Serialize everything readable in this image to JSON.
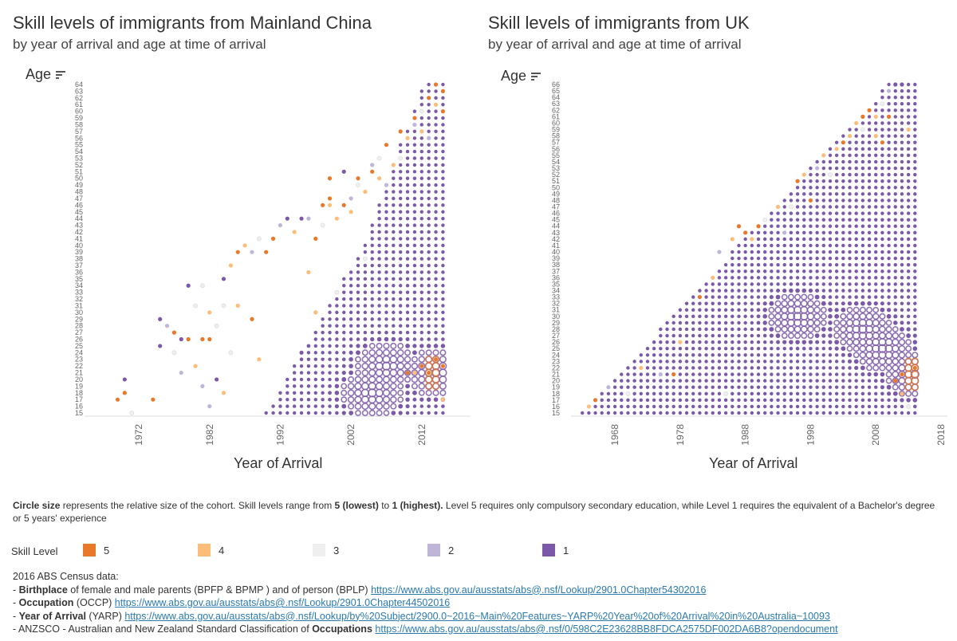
{
  "colors": {
    "level5": "#e8782a",
    "level4": "#fcbd7a",
    "level3": "#efefef",
    "level2": "#bfb5d9",
    "level1": "#7b58a8",
    "axis": "#666666",
    "baseline": "#dddddd"
  },
  "chart_data": [
    {
      "type": "scatter",
      "title": "Skill levels of immigrants from Mainland China",
      "subtitle": "by year of arrival and age at time of arrival",
      "xlabel": "Year of Arrival",
      "ylabel": "Age",
      "x_ticks": [
        1972,
        1982,
        1992,
        2002,
        2012
      ],
      "xlim": [
        1965,
        2018
      ],
      "ylim": [
        15,
        64
      ],
      "y_ticks": [
        15,
        16,
        17,
        18,
        19,
        20,
        21,
        22,
        23,
        24,
        25,
        26,
        27,
        28,
        29,
        30,
        31,
        32,
        33,
        34,
        35,
        36,
        37,
        38,
        39,
        40,
        41,
        42,
        43,
        44,
        45,
        46,
        47,
        48,
        49,
        50,
        51,
        52,
        53,
        54,
        55,
        56,
        57,
        58,
        59,
        60,
        61,
        62,
        63,
        64
      ],
      "size_encoding": "relative size of cohort",
      "color_encoding": "skill level",
      "points": [
        [
          1969,
          17,
          5
        ],
        [
          1970,
          20,
          1
        ],
        [
          1970,
          18,
          5
        ],
        [
          1971,
          15,
          3
        ],
        [
          1974,
          17,
          5
        ],
        [
          1975,
          25,
          1
        ],
        [
          1975,
          29,
          1
        ],
        [
          1976,
          28,
          2
        ],
        [
          1977,
          24,
          3
        ],
        [
          1977,
          27,
          5
        ],
        [
          1978,
          26,
          1
        ],
        [
          1978,
          21,
          2
        ],
        [
          1979,
          26,
          5
        ],
        [
          1979,
          34,
          1
        ],
        [
          1980,
          31,
          3
        ],
        [
          1980,
          22,
          4
        ],
        [
          1981,
          26,
          5
        ],
        [
          1981,
          34,
          3
        ],
        [
          1981,
          19,
          2
        ],
        [
          1982,
          26,
          5
        ],
        [
          1982,
          30,
          4
        ],
        [
          1982,
          16,
          2
        ],
        [
          1983,
          28,
          3
        ],
        [
          1983,
          20,
          1
        ],
        [
          1984,
          31,
          3
        ],
        [
          1984,
          35,
          1
        ],
        [
          1984,
          18,
          4
        ],
        [
          1985,
          37,
          4
        ],
        [
          1985,
          24,
          3
        ],
        [
          1986,
          39,
          5
        ],
        [
          1986,
          31,
          4
        ],
        [
          1987,
          40,
          4
        ],
        [
          1988,
          39,
          2
        ],
        [
          1988,
          29,
          5
        ],
        [
          1989,
          41,
          3
        ],
        [
          1989,
          23,
          4
        ],
        [
          1990,
          39,
          5
        ],
        [
          1991,
          41,
          5
        ],
        [
          1992,
          43,
          2
        ],
        [
          1993,
          44,
          1
        ],
        [
          1994,
          42,
          4
        ],
        [
          1995,
          44,
          1
        ],
        [
          1996,
          44,
          2
        ],
        [
          1996,
          36,
          4
        ],
        [
          1997,
          41,
          5
        ],
        [
          1997,
          30,
          4
        ],
        [
          1998,
          46,
          5
        ],
        [
          1998,
          43,
          3
        ],
        [
          1999,
          50,
          5
        ],
        [
          1999,
          47,
          5
        ],
        [
          1999,
          46,
          4
        ],
        [
          2000,
          44,
          4
        ],
        [
          2000,
          33,
          3
        ],
        [
          2001,
          51,
          1
        ],
        [
          2001,
          46,
          5
        ],
        [
          2002,
          45,
          4
        ],
        [
          2002,
          47,
          2
        ],
        [
          2003,
          50,
          5
        ],
        [
          2003,
          49,
          3
        ],
        [
          2004,
          48,
          4
        ],
        [
          2004,
          38,
          3
        ],
        [
          2005,
          51,
          5
        ],
        [
          2005,
          52,
          2
        ],
        [
          2006,
          50,
          4
        ],
        [
          2006,
          53,
          3
        ],
        [
          2007,
          55,
          5
        ],
        [
          2007,
          49,
          2
        ],
        [
          2008,
          52,
          4
        ],
        [
          2009,
          57,
          5
        ],
        [
          2009,
          53,
          3
        ],
        [
          2010,
          56,
          4
        ],
        [
          2010,
          21,
          5
        ],
        [
          2011,
          59,
          5
        ],
        [
          2011,
          58,
          2
        ],
        [
          2011,
          21,
          4
        ],
        [
          2012,
          60,
          3
        ],
        [
          2012,
          57,
          4
        ],
        [
          2012,
          22,
          5
        ],
        [
          2013,
          62,
          5
        ],
        [
          2013,
          56,
          2
        ],
        [
          2013,
          21,
          5
        ],
        [
          2014,
          64,
          5
        ],
        [
          2014,
          61,
          4
        ],
        [
          2014,
          23,
          5
        ],
        [
          2015,
          63,
          5
        ],
        [
          2015,
          60,
          5
        ],
        [
          2015,
          22,
          5
        ],
        [
          2015,
          17,
          4
        ]
      ]
    },
    {
      "type": "scatter",
      "title": "Skill levels of immigrants from UK",
      "subtitle": "by year of arrival and age at time of arrival",
      "xlabel": "Year of Arrival",
      "ylabel": "Age",
      "x_ticks": [
        1968,
        1978,
        1988,
        1998,
        2008,
        2018
      ],
      "xlim": [
        1962,
        2018
      ],
      "ylim": [
        15,
        66
      ],
      "y_ticks": [
        15,
        16,
        17,
        18,
        19,
        20,
        21,
        22,
        23,
        24,
        25,
        26,
        27,
        28,
        29,
        30,
        31,
        32,
        33,
        34,
        35,
        36,
        37,
        38,
        39,
        40,
        41,
        42,
        43,
        44,
        45,
        46,
        47,
        48,
        49,
        50,
        51,
        52,
        53,
        54,
        55,
        56,
        57,
        58,
        59,
        60,
        61,
        62,
        63,
        64,
        65,
        66
      ],
      "size_encoding": "relative size of cohort",
      "color_encoding": "skill level",
      "points": [
        [
          1964,
          16,
          4
        ],
        [
          1965,
          17,
          5
        ],
        [
          1967,
          19,
          2
        ],
        [
          1970,
          18,
          3
        ],
        [
          1972,
          22,
          4
        ],
        [
          1975,
          21,
          2
        ],
        [
          1977,
          21,
          5
        ],
        [
          1978,
          26,
          4
        ],
        [
          1981,
          33,
          5
        ],
        [
          1983,
          36,
          4
        ],
        [
          1984,
          40,
          2
        ],
        [
          1985,
          18,
          3
        ],
        [
          1986,
          42,
          4
        ],
        [
          1987,
          44,
          5
        ],
        [
          1988,
          43,
          5
        ],
        [
          1989,
          42,
          4
        ],
        [
          1990,
          44,
          5
        ],
        [
          1991,
          45,
          3
        ],
        [
          1993,
          47,
          4
        ],
        [
          1994,
          43,
          2
        ],
        [
          1995,
          47,
          3
        ],
        [
          1996,
          51,
          5
        ],
        [
          1997,
          52,
          4
        ],
        [
          1998,
          48,
          5
        ],
        [
          1999,
          53,
          2
        ],
        [
          2000,
          55,
          4
        ],
        [
          2001,
          52,
          3
        ],
        [
          2002,
          56,
          4
        ],
        [
          2003,
          57,
          5
        ],
        [
          2004,
          58,
          4
        ],
        [
          2005,
          60,
          4
        ],
        [
          2006,
          61,
          5
        ],
        [
          2006,
          59,
          3
        ],
        [
          2007,
          62,
          5
        ],
        [
          2008,
          61,
          4
        ],
        [
          2008,
          58,
          4
        ],
        [
          2009,
          63,
          3
        ],
        [
          2009,
          57,
          5
        ],
        [
          2010,
          65,
          2
        ],
        [
          2010,
          61,
          5
        ],
        [
          2011,
          66,
          1
        ],
        [
          2011,
          20,
          5
        ],
        [
          2012,
          66,
          1
        ],
        [
          2012,
          21,
          5
        ],
        [
          2012,
          18,
          4
        ],
        [
          2013,
          59,
          4
        ],
        [
          2013,
          16,
          3
        ],
        [
          2014,
          22,
          5
        ]
      ]
    }
  ],
  "axis_titles": {
    "age": "Age",
    "year": "Year of Arrival"
  },
  "note": {
    "p1": "Circle size",
    "p2": " represents the relative size of the cohort. Skill levels range from ",
    "p3": "5 (lowest)",
    "p4": " to ",
    "p5": "1 (highest).",
    "p6": " Level 5 requires only compulsory secondary education, while Level 1 requires the equivalent of a Bachelor's degree or 5 years' experience"
  },
  "legend": {
    "title": "Skill Level",
    "items": [
      "5",
      "4",
      "3",
      "2",
      "1"
    ]
  },
  "sources": {
    "header": "2016 ABS Census data:",
    "l1a": "- ",
    "l1b": "Birthplace",
    "l1c": " of female and male parents (BPFP & BPMP ) and of person (BPLP) ",
    "l1link": "https://www.abs.gov.au/ausstats/abs@.nsf/Lookup/2901.0Chapter54302016",
    "l2a": "- ",
    "l2b": "Occupation",
    "l2c": " (OCCP) ",
    "l2link": "https://www.abs.gov.au/ausstats/abs@.nsf/Lookup/2901.0Chapter44502016",
    "l3a": "- ",
    "l3b": "Year of Arrival",
    "l3c": " (YARP) ",
    "l3link": "https://www.abs.gov.au/ausstats/abs@.nsf/Lookup/by%20Subject/2900.0~2016~Main%20Features~YARP%20Year%20of%20Arrival%20in%20Australia~10093",
    "l4a": "- ANZSCO - Australian and New Zealand Standard Classification of ",
    "l4b": "Occupations",
    "l4c": " ",
    "l4link": "https://www.abs.gov.au/ausstats/abs@.nsf/0/598C2E23628BB8FDCA2575DF002DA6B8?opendocument"
  }
}
